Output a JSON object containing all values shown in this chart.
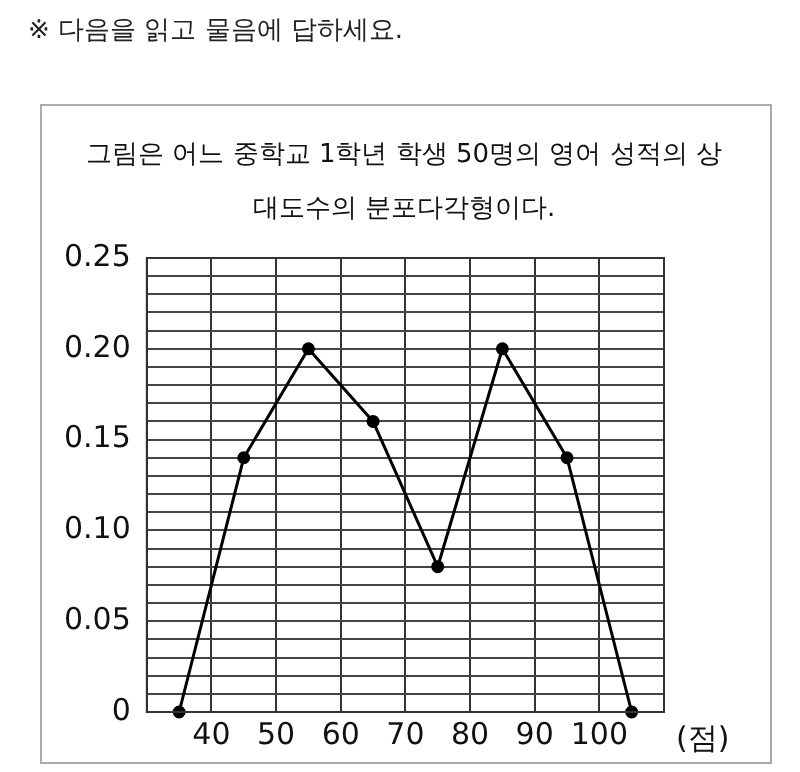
{
  "chart_data": {
    "type": "line",
    "title": "그림은 어느 중학교 1학년 학생 50명의 영어 성적의 상대도수의 분포다각형이다.",
    "annotations": [
      "※ 다음을 읽고 물음에 답하세요."
    ],
    "xlabel": "(점)",
    "x": [
      35,
      45,
      55,
      65,
      75,
      85,
      95,
      105
    ],
    "values": [
      0,
      0.14,
      0.2,
      0.16,
      0.08,
      0.2,
      0.14,
      0
    ],
    "color": "#000000",
    "marker": "circle",
    "grid": true,
    "xlim": [
      30,
      110
    ],
    "xticks": [
      40,
      50,
      60,
      70,
      80,
      90,
      100
    ],
    "ylim": [
      0,
      0.25
    ],
    "yticks": [
      0,
      {
        "value": 0.01,
        "label": null
      },
      {
        "value": 0.02,
        "label": null
      },
      {
        "value": 0.03,
        "label": null
      },
      {
        "value": 0.04,
        "label": null
      },
      0.05,
      {
        "value": 0.06,
        "label": null
      },
      {
        "value": 0.07,
        "label": null
      },
      {
        "value": 0.08,
        "label": null
      },
      {
        "value": 0.09,
        "label": null
      },
      {
        "value": 0.1,
        "label": "0.10"
      },
      {
        "value": 0.11,
        "label": null
      },
      {
        "value": 0.12,
        "label": null
      },
      {
        "value": 0.13,
        "label": null
      },
      {
        "value": 0.14,
        "label": null
      },
      0.15,
      {
        "value": 0.16,
        "label": null
      },
      {
        "value": 0.17,
        "label": null
      },
      {
        "value": 0.18,
        "label": null
      },
      {
        "value": 0.19,
        "label": null
      },
      {
        "value": 0.2,
        "label": "0.20"
      },
      {
        "value": 0.21,
        "label": null
      },
      {
        "value": 0.22,
        "label": null
      },
      {
        "value": 0.23,
        "label": null
      },
      {
        "value": 0.24,
        "label": null
      },
      0.25
    ]
  }
}
